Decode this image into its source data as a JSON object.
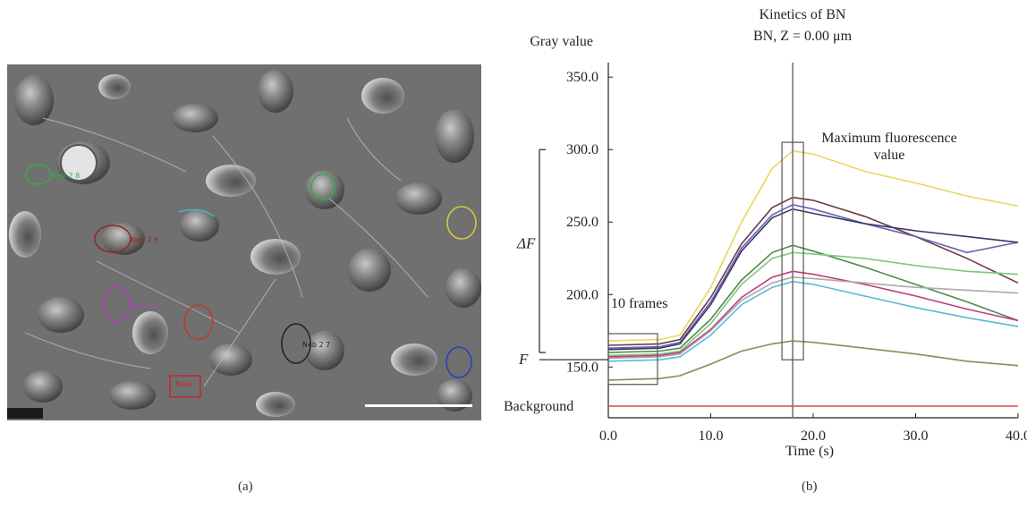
{
  "panels": {
    "a_label": "(a)",
    "b_label": "(b)"
  },
  "micrograph": {
    "roi_labels": [
      "Neb 2 8",
      "Neb 2 5",
      "Neb 2 4",
      "Neb 2 7",
      "Back"
    ],
    "roi_colors": [
      "#3aa84a",
      "#8e2b2b",
      "#b040b0",
      "#c0392b",
      "#222222",
      "#2b40b8",
      "#d4c83a",
      "#4ab8c8",
      "#cc2222"
    ]
  },
  "chart_data": {
    "type": "line",
    "title": "Kinetics of BN",
    "subtitle": "BN, Z = 0.00 μm",
    "ylabel": "Gray value",
    "xlabel": "Time (s)",
    "xlim": [
      0,
      40
    ],
    "ylim": [
      115,
      360
    ],
    "xticks": [
      "0.0",
      "10.0",
      "20.0",
      "30.0",
      "40.0"
    ],
    "yticks": [
      "150.0",
      "200.0",
      "250.0",
      "300.0",
      "350.0"
    ],
    "xtick_values": [
      0,
      10,
      20,
      30,
      40
    ],
    "ytick_values": [
      150,
      200,
      250,
      300,
      350
    ],
    "grid": false,
    "annotations": {
      "max_label_line1": "Maximum fluorescence",
      "max_label_line2": "value",
      "frames_label": "10 frames",
      "delta_f": "ΔF",
      "f_label": "F",
      "background_label": "Background",
      "max_time": 18,
      "frames_range": [
        0,
        4.8
      ],
      "max_box_y": [
        155,
        305
      ],
      "frames_box_y": [
        138,
        173
      ],
      "delta_f_range": [
        160,
        300
      ],
      "f_level": 160
    },
    "series": [
      {
        "color": "#e8d85a",
        "points": [
          [
            0,
            168
          ],
          [
            5,
            169
          ],
          [
            7,
            172
          ],
          [
            10,
            205
          ],
          [
            13,
            250
          ],
          [
            16,
            287
          ],
          [
            18,
            299
          ],
          [
            20,
            297
          ],
          [
            25,
            285
          ],
          [
            30,
            277
          ],
          [
            35,
            268
          ],
          [
            40,
            261
          ]
        ]
      },
      {
        "color": "#6b3a45",
        "points": [
          [
            0,
            165
          ],
          [
            5,
            166
          ],
          [
            7,
            169
          ],
          [
            10,
            198
          ],
          [
            13,
            235
          ],
          [
            16,
            260
          ],
          [
            18,
            267
          ],
          [
            20,
            265
          ],
          [
            25,
            254
          ],
          [
            30,
            240
          ],
          [
            35,
            225
          ],
          [
            40,
            208
          ]
        ]
      },
      {
        "color": "#6a60b8",
        "points": [
          [
            0,
            163
          ],
          [
            5,
            164
          ],
          [
            7,
            167
          ],
          [
            10,
            195
          ],
          [
            13,
            232
          ],
          [
            16,
            255
          ],
          [
            18,
            262
          ],
          [
            20,
            259
          ],
          [
            25,
            249
          ],
          [
            30,
            240
          ],
          [
            35,
            229
          ],
          [
            40,
            236
          ]
        ]
      },
      {
        "color": "#3a3a66",
        "points": [
          [
            0,
            162
          ],
          [
            5,
            163
          ],
          [
            7,
            166
          ],
          [
            10,
            193
          ],
          [
            13,
            230
          ],
          [
            16,
            253
          ],
          [
            18,
            259
          ],
          [
            20,
            256
          ],
          [
            25,
            249
          ],
          [
            30,
            244
          ],
          [
            35,
            240
          ],
          [
            40,
            236
          ]
        ]
      },
      {
        "color": "#4e8a4e",
        "points": [
          [
            0,
            160
          ],
          [
            5,
            161
          ],
          [
            7,
            163
          ],
          [
            10,
            183
          ],
          [
            13,
            210
          ],
          [
            16,
            229
          ],
          [
            18,
            234
          ],
          [
            20,
            230
          ],
          [
            25,
            219
          ],
          [
            30,
            207
          ],
          [
            35,
            195
          ],
          [
            40,
            182
          ]
        ]
      },
      {
        "color": "#7cc87c",
        "points": [
          [
            0,
            158
          ],
          [
            5,
            159
          ],
          [
            7,
            161
          ],
          [
            10,
            180
          ],
          [
            13,
            207
          ],
          [
            16,
            225
          ],
          [
            18,
            229
          ],
          [
            20,
            228
          ],
          [
            25,
            225
          ],
          [
            30,
            220
          ],
          [
            35,
            216
          ],
          [
            40,
            214
          ]
        ]
      },
      {
        "color": "#c03a7a",
        "points": [
          [
            0,
            157
          ],
          [
            5,
            158
          ],
          [
            7,
            160
          ],
          [
            10,
            176
          ],
          [
            13,
            198
          ],
          [
            16,
            212
          ],
          [
            18,
            216
          ],
          [
            20,
            214
          ],
          [
            25,
            207
          ],
          [
            30,
            199
          ],
          [
            35,
            190
          ],
          [
            40,
            182
          ]
        ]
      },
      {
        "color": "#aaaaaa",
        "points": [
          [
            0,
            156
          ],
          [
            5,
            157
          ],
          [
            7,
            159
          ],
          [
            10,
            175
          ],
          [
            13,
            196
          ],
          [
            16,
            208
          ],
          [
            18,
            212
          ],
          [
            20,
            211
          ],
          [
            25,
            208
          ],
          [
            30,
            205
          ],
          [
            35,
            203
          ],
          [
            40,
            201
          ]
        ]
      },
      {
        "color": "#5ab8d8",
        "points": [
          [
            0,
            154
          ],
          [
            5,
            155
          ],
          [
            7,
            157
          ],
          [
            10,
            172
          ],
          [
            13,
            193
          ],
          [
            16,
            205
          ],
          [
            18,
            209
          ],
          [
            20,
            207
          ],
          [
            25,
            199
          ],
          [
            30,
            191
          ],
          [
            35,
            184
          ],
          [
            40,
            178
          ]
        ]
      },
      {
        "color": "#8a8a5a",
        "points": [
          [
            0,
            141
          ],
          [
            5,
            142
          ],
          [
            7,
            144
          ],
          [
            10,
            152
          ],
          [
            13,
            161
          ],
          [
            16,
            166
          ],
          [
            18,
            168
          ],
          [
            20,
            167
          ],
          [
            25,
            163
          ],
          [
            30,
            159
          ],
          [
            35,
            154
          ],
          [
            40,
            151
          ]
        ]
      },
      {
        "color": "#d84848",
        "points": [
          [
            0,
            123
          ],
          [
            10,
            123
          ],
          [
            20,
            123
          ],
          [
            30,
            123
          ],
          [
            40,
            123
          ]
        ]
      }
    ]
  }
}
